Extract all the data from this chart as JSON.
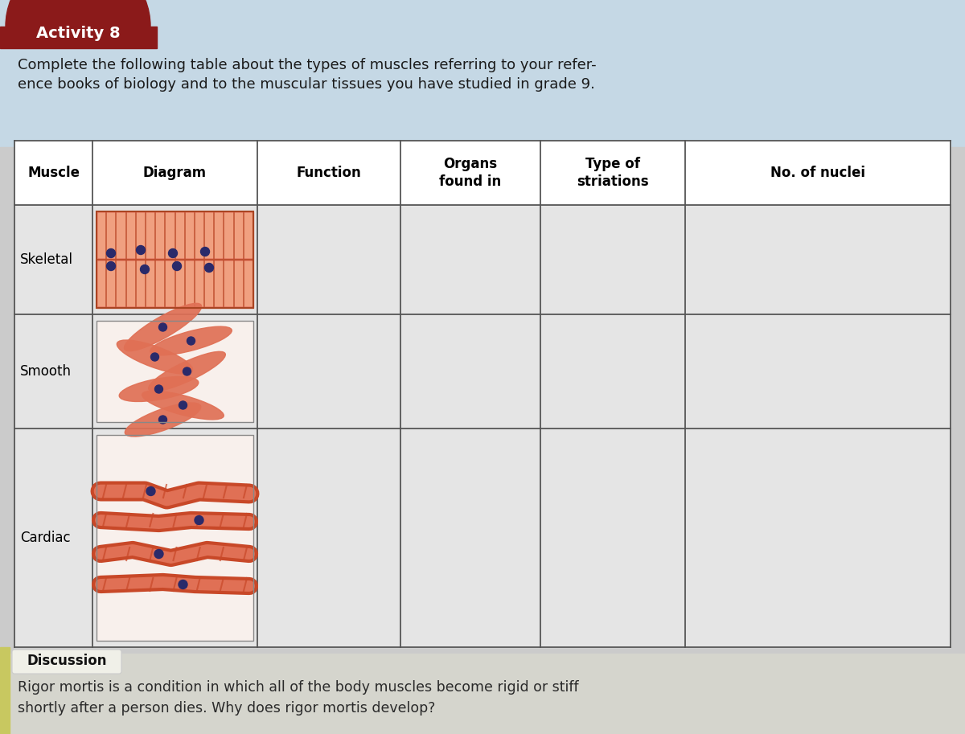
{
  "activity_label": "Activity 8",
  "activity_bg_color": "#8B1A1A",
  "intro_text_line1": "Complete the following table about the types of muscles referring to your refer-",
  "intro_text_line2": "ence books of biology and to the muscular tissues you have studied in grade 9.",
  "bg_top_color": "#c8d8e2",
  "bg_bottom_color": "#d0d0d0",
  "table_cell_bg": "#e2e2e2",
  "table_header_bg": "#ffffff",
  "col_headers": [
    "Muscle",
    "Diagram",
    "Function",
    "Organs\nfound in",
    "Type of\nstriations",
    "No. of nuclei"
  ],
  "row_labels": [
    "Skeletal",
    "Smooth",
    "Cardiac"
  ],
  "discussion_label": "Discussion",
  "discussion_bg": "#d8d8d0",
  "discussion_text_line1": "Rigor mortis is a condition in which all of the body muscles become rigid or stiff",
  "discussion_text_line2": "shortly after a person dies. Why does rigor mortis develop?",
  "page_bg": "#b8b8b8"
}
